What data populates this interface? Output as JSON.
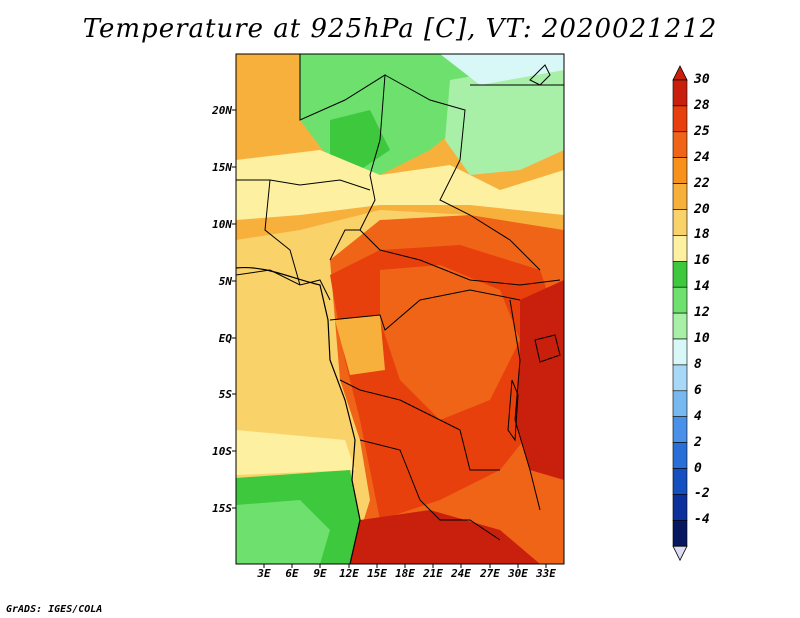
{
  "title": "Temperature at 925hPa [C], VT: 2020021212",
  "credit": "GrADS: IGES/COLA",
  "map": {
    "lat_ticks": [
      "20N",
      "15N",
      "10N",
      "5N",
      "EQ",
      "5S",
      "10S",
      "15S"
    ],
    "lon_ticks": [
      "3E",
      "6E",
      "9E",
      "12E",
      "15E",
      "18E",
      "21E",
      "24E",
      "27E",
      "30E",
      "33E"
    ]
  },
  "colorbar": {
    "labels": [
      "30",
      "28",
      "25",
      "24",
      "22",
      "20",
      "18",
      "16",
      "14",
      "12",
      "10",
      "8",
      "6",
      "4",
      "2",
      "0",
      "-2",
      "-4"
    ],
    "colors": [
      "#c8200c",
      "#e8400c",
      "#f06418",
      "#f8901c",
      "#f8b03c",
      "#fad26a",
      "#fdf0a0",
      "#3ec83e",
      "#6ee06e",
      "#a8f0a8",
      "#d8f8f8",
      "#a8d8f8",
      "#78b8f0",
      "#4890e8",
      "#2870d8",
      "#1450c0",
      "#0c309c",
      "#081860"
    ]
  }
}
